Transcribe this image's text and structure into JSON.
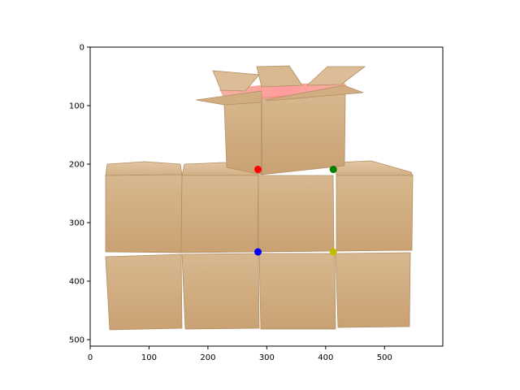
{
  "chart_data": {
    "type": "scatter",
    "title": "",
    "xlabel": "",
    "ylabel": "",
    "xlim": [
      0,
      599
    ],
    "ylim": [
      511,
      0
    ],
    "y_inverted": true,
    "grid": false,
    "legend": "none",
    "x_ticks": [
      0,
      100,
      200,
      300,
      400,
      500
    ],
    "y_ticks": [
      0,
      100,
      200,
      300,
      400,
      500
    ],
    "background_image": "stack-of-cardboard-boxes-photo",
    "points": [
      {
        "x": 285,
        "y": 209,
        "color": "#ff0000"
      },
      {
        "x": 413,
        "y": 209,
        "color": "#008000"
      },
      {
        "x": 285,
        "y": 350,
        "color": "#0000ff"
      },
      {
        "x": 413,
        "y": 350,
        "color": "#bfbf00"
      }
    ]
  }
}
